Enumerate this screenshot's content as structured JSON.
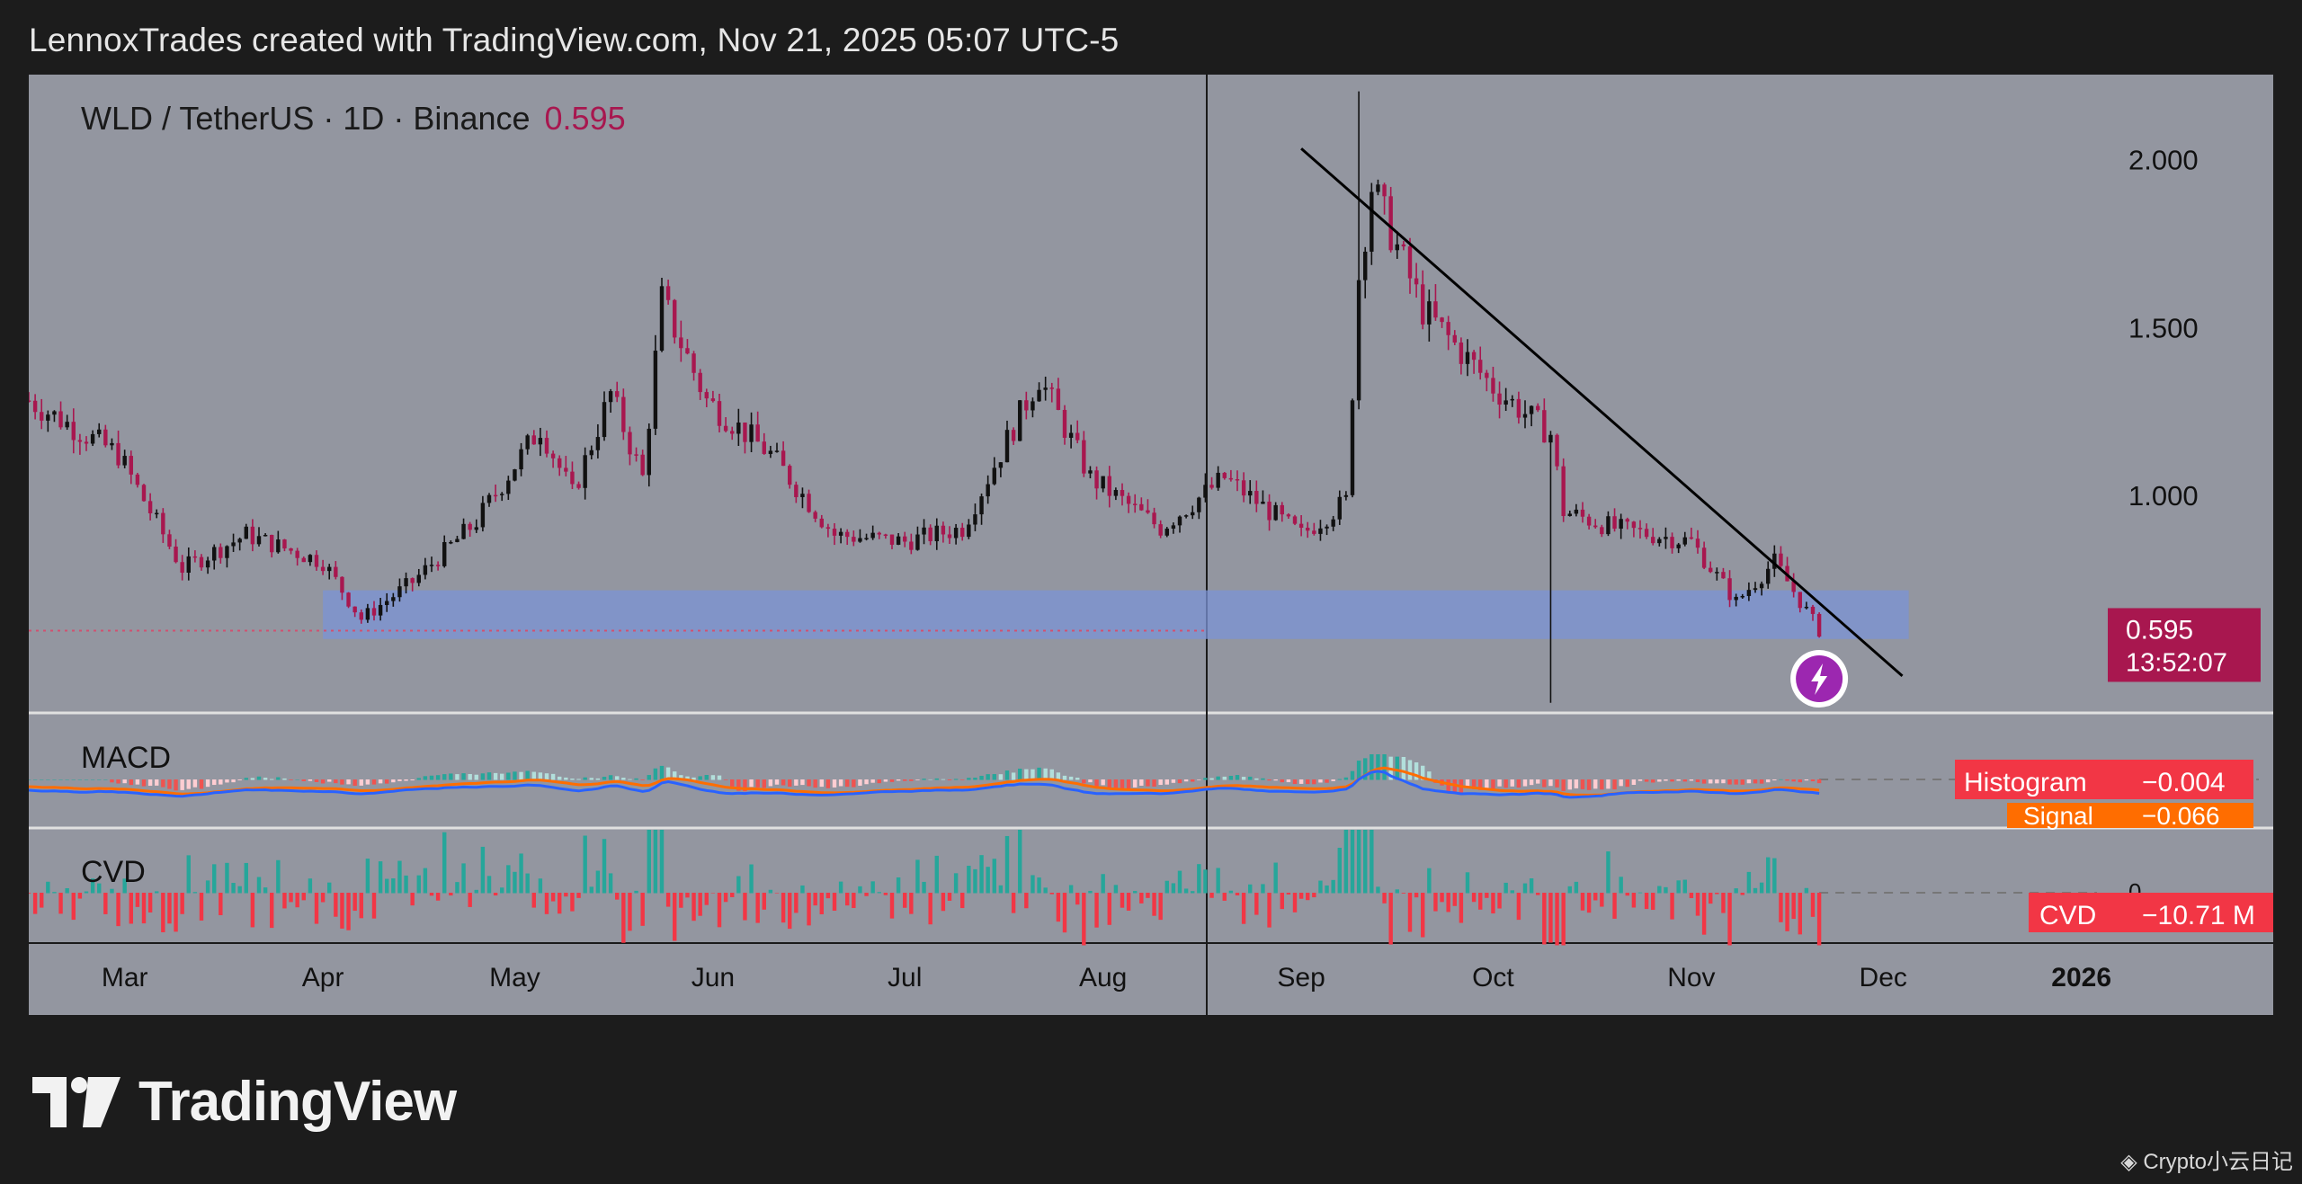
{
  "header": {
    "attribution": "LennoxTrades created with TradingView.com, Nov 21, 2025 05:07 UTC-5"
  },
  "symbol": {
    "name": "WLD / TetherUS · 1D · Binance",
    "last_price": "0.595"
  },
  "price_scale": {
    "ticks": [
      "2.000",
      "1.500",
      "1.000"
    ]
  },
  "price_tag": {
    "value": "0.595",
    "countdown": "13:52:07"
  },
  "time_axis": {
    "labels": [
      "Mar",
      "Apr",
      "May",
      "Jun",
      "Jul",
      "Aug",
      "Sep",
      "Oct",
      "Nov",
      "Dec",
      "2026"
    ]
  },
  "macd": {
    "title": "MACD",
    "histogram_label": "Histogram",
    "histogram_value": "−0.004",
    "signal_label": "Signal",
    "signal_value": "−0.066"
  },
  "cvd": {
    "title": "CVD",
    "label": "CVD",
    "value": "−10.71 M",
    "zero_tick": "0"
  },
  "brand": {
    "name": "TradingView"
  },
  "watermark": {
    "text": "Crypto小云日记"
  },
  "colors": {
    "up": "#111111",
    "down": "#a8174f",
    "accent": "#a8174f",
    "macd_line": "#2962ff",
    "signal_line": "#ff6d00",
    "support_zone": "#7b93d6",
    "cvd_up": "#26a69a",
    "cvd_down": "#f23645",
    "pane_bg": "#9396a0"
  },
  "chart_data": {
    "type": "candlestick",
    "title": "WLD / TetherUS · 1D · Binance",
    "ylim": [
      0.35,
      2.25
    ],
    "x_range": [
      "2025-02-14",
      "2026-01-31"
    ],
    "price_points": [
      [
        "2025-02-14",
        1.28
      ],
      [
        "2025-02-28",
        1.12
      ],
      [
        "2025-03-10",
        0.78
      ],
      [
        "2025-03-20",
        0.88
      ],
      [
        "2025-04-01",
        0.8
      ],
      [
        "2025-04-07",
        0.63
      ],
      [
        "2025-04-15",
        0.74
      ],
      [
        "2025-04-25",
        0.92
      ],
      [
        "2025-05-05",
        1.2
      ],
      [
        "2025-05-10",
        1.0
      ],
      [
        "2025-05-16",
        1.3
      ],
      [
        "2025-05-21",
        1.05
      ],
      [
        "2025-05-24",
        1.58
      ],
      [
        "2025-05-31",
        1.28
      ],
      [
        "2025-06-10",
        1.12
      ],
      [
        "2025-06-20",
        0.88
      ],
      [
        "2025-07-01",
        0.86
      ],
      [
        "2025-07-10",
        0.9
      ],
      [
        "2025-07-22",
        1.35
      ],
      [
        "2025-07-30",
        1.05
      ],
      [
        "2025-08-10",
        0.9
      ],
      [
        "2025-08-20",
        1.05
      ],
      [
        "2025-09-01",
        0.88
      ],
      [
        "2025-09-08",
        0.98
      ],
      [
        "2025-09-10",
        1.65
      ],
      [
        "2025-09-12",
        1.92
      ],
      [
        "2025-09-20",
        1.55
      ],
      [
        "2025-10-01",
        1.32
      ],
      [
        "2025-10-10",
        1.18
      ],
      [
        "2025-10-12",
        0.95
      ],
      [
        "2025-10-20",
        0.9
      ],
      [
        "2025-11-01",
        0.86
      ],
      [
        "2025-11-08",
        0.68
      ],
      [
        "2025-11-14",
        0.8
      ],
      [
        "2025-11-21",
        0.595
      ]
    ],
    "support_zone": {
      "from": "2025-04-01",
      "to": "2025-12-05",
      "low": 0.57,
      "high": 0.715
    },
    "trendline": [
      [
        "2025-09-01",
        2.03
      ],
      [
        "2025-12-04",
        0.46
      ]
    ],
    "spike_high": {
      "date": "2025-09-10",
      "value": 2.2
    },
    "spike_low": {
      "date": "2025-10-10",
      "value": 0.38
    },
    "last_price": 0.595,
    "macd": {
      "histogram": -0.004,
      "signal": -0.066
    },
    "cvd": {
      "value": "−10.71 M"
    }
  }
}
